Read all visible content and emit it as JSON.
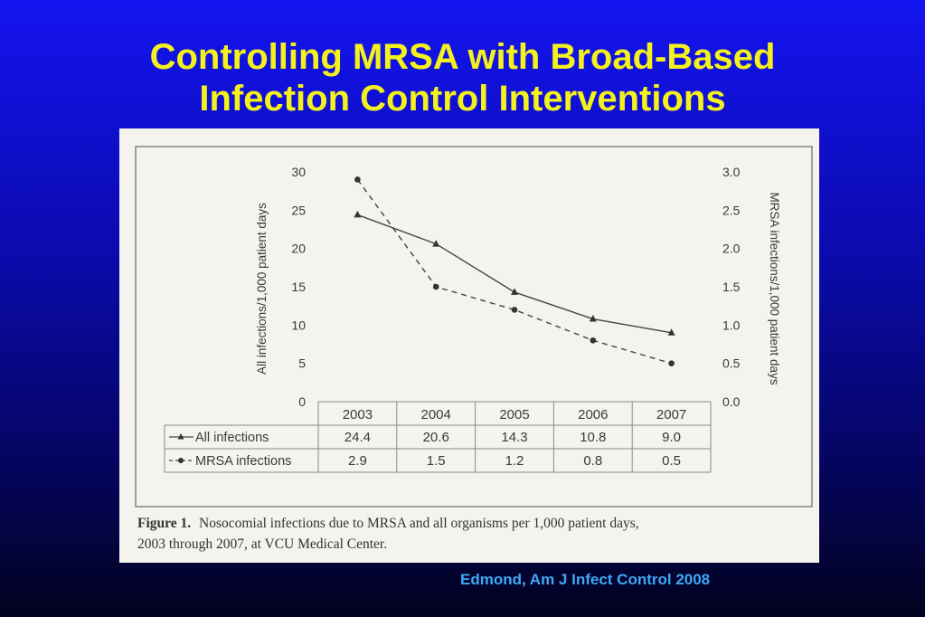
{
  "slide": {
    "title_line1": "Controlling MRSA with Broad-Based",
    "title_line2": "Infection Control Interventions",
    "source": "Edmond, Am J Infect Control 2008"
  },
  "colors": {
    "title": "#f4f21a",
    "source": "#3fa9f5",
    "background_top": "#1414f0",
    "background_bottom": "#02021e",
    "figure_paper": "#f4f3ef",
    "ink": "#3a3a3a"
  },
  "chart_data": {
    "type": "line",
    "categories": [
      "2003",
      "2004",
      "2005",
      "2006",
      "2007"
    ],
    "series": [
      {
        "name": "All infections",
        "axis": "left",
        "marker": "triangle",
        "line": "solid",
        "values": [
          24.4,
          20.6,
          14.3,
          10.8,
          9.0
        ]
      },
      {
        "name": "MRSA infections",
        "axis": "right",
        "marker": "circle",
        "line": "dashed",
        "values": [
          2.9,
          1.5,
          1.2,
          0.8,
          0.5
        ]
      }
    ],
    "left_axis": {
      "label": "All infections/1,000 patient days",
      "ylim": [
        0,
        30
      ],
      "ticks": [
        "30",
        "25",
        "20",
        "15",
        "10",
        "5",
        "0"
      ]
    },
    "right_axis": {
      "label": "MRSA infections/1,000 patient days",
      "ylim": [
        0,
        3.0
      ],
      "ticks": [
        "3.0",
        "2.5",
        "2.0",
        "1.5",
        "1.0",
        "0.5",
        "0.0"
      ]
    },
    "table": {
      "rows": [
        {
          "label": "All infections",
          "values": [
            "24.4",
            "20.6",
            "14.3",
            "10.8",
            "9.0"
          ]
        },
        {
          "label": "MRSA infections",
          "values": [
            "2.9",
            "1.5",
            "1.2",
            "0.8",
            "0.5"
          ]
        }
      ]
    },
    "caption_label": "Figure 1.",
    "caption_line1": "Nosocomial infections due to MRSA and all organisms per 1,000 patient days,",
    "caption_line2": "2003 through 2007, at VCU Medical Center.",
    "grid": false,
    "legend": "data table below chart"
  }
}
